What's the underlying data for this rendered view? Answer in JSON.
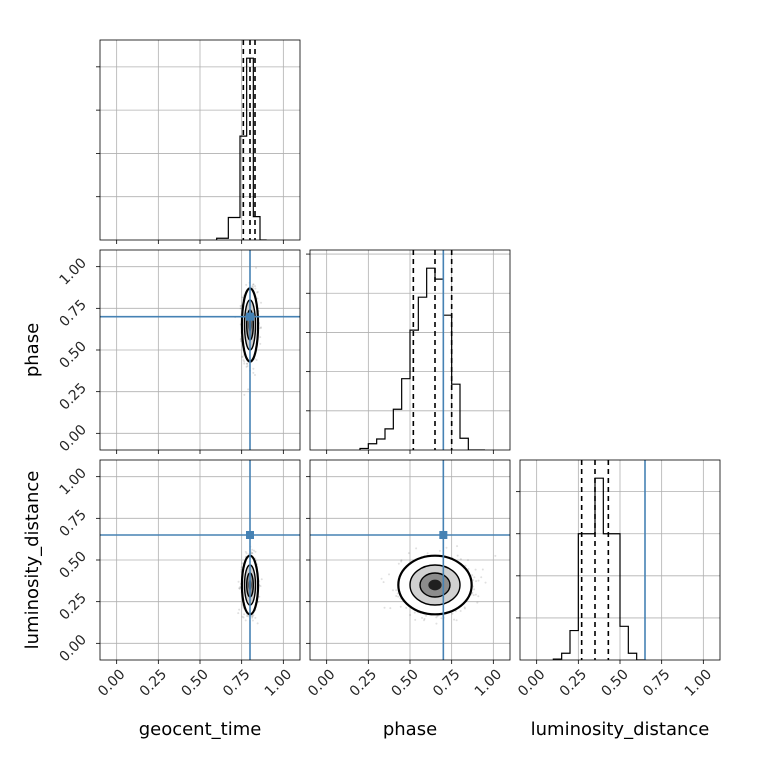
{
  "colors": {
    "truth": "#4682b4",
    "hist": "#000000",
    "grid": "#b0b0b0",
    "scatter": "#555555"
  },
  "chart_data": {
    "type": "corner",
    "parameters": [
      "geocent_time",
      "phase",
      "luminosity_distance"
    ],
    "axis_range": [
      -0.1,
      1.1
    ],
    "ticks": [
      0.0,
      0.25,
      0.5,
      0.75,
      1.0
    ],
    "tick_labels": [
      "0.00",
      "0.25",
      "0.50",
      "0.75",
      "1.00"
    ],
    "grid": true,
    "truths": {
      "geocent_time": 0.8,
      "phase": 0.7,
      "luminosity_distance": 0.65
    },
    "quantiles": {
      "geocent_time": [
        0.76,
        0.8,
        0.83
      ],
      "phase": [
        0.52,
        0.65,
        0.75
      ],
      "luminosity_distance": [
        0.27,
        0.35,
        0.43
      ]
    },
    "histograms": {
      "geocent_time": {
        "bin_edges": [
          0.6,
          0.67,
          0.74,
          0.78,
          0.82,
          0.86,
          0.9
        ],
        "counts": [
          2,
          26,
          120,
          210,
          27,
          0
        ]
      },
      "phase": {
        "bin_edges": [
          0.2,
          0.25,
          0.3,
          0.35,
          0.4,
          0.45,
          0.5,
          0.55,
          0.6,
          0.65,
          0.7,
          0.75,
          0.8,
          0.85,
          0.9,
          0.95
        ],
        "counts": [
          2,
          8,
          14,
          27,
          52,
          91,
          153,
          195,
          232,
          218,
          172,
          84,
          15,
          0,
          0
        ]
      },
      "luminosity_distance": {
        "bin_edges": [
          0.1,
          0.15,
          0.2,
          0.25,
          0.3,
          0.35,
          0.4,
          0.45,
          0.5,
          0.55,
          0.6,
          0.65
        ],
        "counts": [
          1,
          8,
          35,
          150,
          150,
          216,
          150,
          150,
          40,
          8,
          0
        ]
      }
    },
    "joint": [
      {
        "x": "geocent_time",
        "y": "phase",
        "center": [
          0.8,
          0.65
        ],
        "spread": [
          0.022,
          0.1
        ]
      },
      {
        "x": "geocent_time",
        "y": "luminosity_distance",
        "center": [
          0.8,
          0.35
        ],
        "spread": [
          0.022,
          0.08
        ]
      },
      {
        "x": "phase",
        "y": "luminosity_distance",
        "center": [
          0.65,
          0.35
        ],
        "spread": [
          0.1,
          0.08
        ]
      }
    ]
  }
}
